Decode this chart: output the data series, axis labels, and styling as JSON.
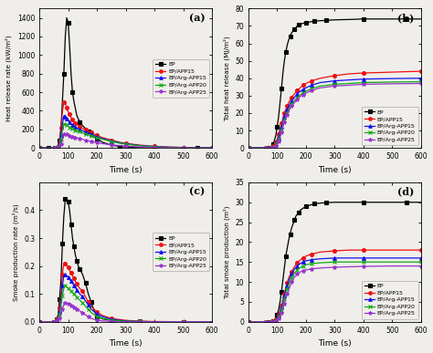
{
  "series_labels": [
    "EP",
    "EP/APP15",
    "EP/Arg-APP15",
    "EP/Arg-APP20",
    "EP/Arg-APP25"
  ],
  "series_colors": [
    "black",
    "#ee1111",
    "#1111ee",
    "#11aa11",
    "#9933cc"
  ],
  "series_markers": [
    "s",
    "o",
    "^",
    "x",
    "*"
  ],
  "series_markersizes": [
    3.5,
    3.0,
    3.0,
    3.5,
    3.5
  ],
  "subplot_labels": [
    "(a)",
    "(b)",
    "(c)",
    "(d)"
  ],
  "hrr": {
    "ylabel": "Heat release rate (kW/m²)",
    "xlabel": "Time (s)",
    "ylim": [
      0,
      1500
    ],
    "yticks": [
      0,
      200,
      400,
      600,
      800,
      1000,
      1200,
      1400
    ],
    "EP_t": [
      0,
      10,
      20,
      30,
      40,
      50,
      55,
      60,
      65,
      70,
      75,
      80,
      85,
      90,
      95,
      100,
      105,
      110,
      115,
      120,
      130,
      140,
      150,
      160,
      170,
      180,
      190,
      200,
      220,
      250,
      280,
      300,
      350,
      400,
      450,
      500,
      550,
      600
    ],
    "EP_v": [
      0,
      0,
      0,
      0,
      0,
      0,
      2,
      5,
      12,
      80,
      200,
      500,
      800,
      1200,
      1400,
      1350,
      1100,
      800,
      600,
      500,
      350,
      280,
      240,
      210,
      180,
      150,
      120,
      100,
      60,
      30,
      15,
      10,
      5,
      2,
      1,
      0,
      0,
      0
    ],
    "EP_APP15_t": [
      0,
      45,
      55,
      60,
      65,
      70,
      75,
      80,
      85,
      90,
      95,
      100,
      105,
      110,
      115,
      120,
      125,
      130,
      140,
      150,
      160,
      170,
      180,
      190,
      200,
      220,
      250,
      280,
      300,
      350,
      400,
      450,
      500,
      550,
      600
    ],
    "EP_APP15_v": [
      0,
      0,
      3,
      8,
      25,
      90,
      220,
      390,
      490,
      480,
      430,
      390,
      360,
      330,
      310,
      290,
      270,
      255,
      230,
      210,
      195,
      180,
      165,
      150,
      135,
      110,
      85,
      60,
      50,
      30,
      18,
      10,
      6,
      3,
      1
    ],
    "EP_Arg_APP15_t": [
      0,
      45,
      55,
      60,
      65,
      70,
      75,
      80,
      85,
      90,
      95,
      100,
      105,
      110,
      115,
      120,
      125,
      130,
      140,
      150,
      160,
      170,
      180,
      190,
      200,
      220,
      250,
      280,
      300,
      350,
      400,
      450,
      500,
      550,
      600
    ],
    "EP_Arg_APP15_v": [
      0,
      0,
      2,
      5,
      15,
      55,
      140,
      260,
      340,
      350,
      320,
      295,
      275,
      260,
      245,
      235,
      225,
      215,
      200,
      185,
      170,
      158,
      145,
      132,
      120,
      100,
      75,
      55,
      45,
      25,
      15,
      8,
      5,
      2,
      1
    ],
    "EP_Arg_APP20_t": [
      0,
      45,
      55,
      60,
      65,
      70,
      75,
      80,
      85,
      90,
      95,
      100,
      105,
      110,
      115,
      120,
      125,
      130,
      140,
      150,
      160,
      170,
      180,
      190,
      200,
      220,
      250,
      280,
      300,
      350,
      400,
      450,
      500,
      550,
      600
    ],
    "EP_Arg_APP20_v": [
      0,
      0,
      1,
      3,
      8,
      30,
      90,
      185,
      255,
      265,
      250,
      235,
      222,
      212,
      205,
      198,
      192,
      186,
      175,
      162,
      150,
      140,
      130,
      120,
      110,
      93,
      70,
      50,
      40,
      22,
      12,
      6,
      3,
      1,
      0
    ],
    "EP_Arg_APP25_t": [
      0,
      45,
      55,
      60,
      65,
      70,
      75,
      80,
      85,
      90,
      95,
      100,
      105,
      110,
      115,
      120,
      125,
      130,
      140,
      150,
      160,
      170,
      180,
      190,
      200,
      220,
      250,
      280,
      300,
      350,
      400,
      450,
      500,
      550,
      600
    ],
    "EP_Arg_APP25_v": [
      0,
      0,
      0,
      1,
      3,
      12,
      40,
      90,
      145,
      155,
      148,
      140,
      133,
      127,
      122,
      118,
      113,
      108,
      100,
      92,
      84,
      76,
      68,
      62,
      56,
      46,
      34,
      24,
      19,
      10,
      5,
      2,
      1,
      0,
      0
    ]
  },
  "thr": {
    "ylabel": "Total heat release (MJ/m²)",
    "xlabel": "Time (s)",
    "ylim": [
      0,
      80
    ],
    "yticks": [
      0,
      10,
      20,
      30,
      40,
      50,
      60,
      70,
      80
    ],
    "EP_t": [
      0,
      50,
      60,
      70,
      75,
      80,
      85,
      90,
      95,
      100,
      105,
      110,
      115,
      120,
      125,
      130,
      135,
      140,
      145,
      150,
      155,
      160,
      165,
      170,
      175,
      180,
      190,
      200,
      210,
      220,
      230,
      240,
      250,
      270,
      300,
      350,
      400,
      450,
      500,
      550,
      600
    ],
    "EP_v": [
      0,
      0,
      0,
      0,
      0,
      1,
      2,
      4,
      7,
      12,
      18,
      26,
      34,
      43,
      50,
      55,
      59,
      62,
      64,
      66,
      67,
      68,
      69,
      70,
      70.5,
      71,
      71.5,
      72,
      72.2,
      72.5,
      72.7,
      72.9,
      73,
      73.2,
      73.5,
      73.7,
      74,
      74,
      74,
      74,
      74
    ],
    "EP_APP15_t": [
      0,
      50,
      60,
      70,
      75,
      80,
      85,
      90,
      95,
      100,
      105,
      110,
      115,
      120,
      125,
      130,
      135,
      140,
      150,
      160,
      170,
      180,
      190,
      200,
      220,
      250,
      300,
      350,
      400,
      500,
      600
    ],
    "EP_APP15_v": [
      0,
      0,
      0,
      0,
      0,
      0,
      1,
      2,
      3,
      5,
      8,
      11,
      14,
      17,
      20,
      22,
      24,
      26,
      29,
      31,
      33,
      34.5,
      36,
      37,
      38.5,
      40,
      41.5,
      42.5,
      43,
      43.5,
      44
    ],
    "EP_Arg_APP15_t": [
      0,
      50,
      60,
      70,
      75,
      80,
      85,
      90,
      95,
      100,
      105,
      110,
      115,
      120,
      125,
      130,
      135,
      140,
      150,
      160,
      170,
      180,
      190,
      200,
      220,
      250,
      300,
      350,
      400,
      500,
      600
    ],
    "EP_Arg_APP15_v": [
      0,
      0,
      0,
      0,
      0,
      0,
      0,
      1,
      2,
      4,
      6,
      9,
      12,
      15,
      18,
      20,
      22,
      24,
      27,
      29,
      31,
      32.5,
      33.5,
      34.5,
      36,
      37.5,
      38.5,
      39,
      39.5,
      39.8,
      40
    ],
    "EP_Arg_APP20_t": [
      0,
      50,
      60,
      70,
      75,
      80,
      85,
      90,
      95,
      100,
      105,
      110,
      115,
      120,
      125,
      130,
      135,
      140,
      150,
      160,
      170,
      180,
      190,
      200,
      220,
      250,
      300,
      350,
      400,
      500,
      600
    ],
    "EP_Arg_APP20_v": [
      0,
      0,
      0,
      0,
      0,
      0,
      0,
      1,
      2,
      3,
      5,
      7,
      10,
      13,
      16,
      18,
      20,
      22,
      25,
      27,
      29,
      30.5,
      31.5,
      32.5,
      34,
      35.5,
      36.5,
      37,
      37.5,
      37.8,
      38
    ],
    "EP_Arg_APP25_t": [
      0,
      50,
      60,
      70,
      75,
      80,
      85,
      90,
      95,
      100,
      105,
      110,
      115,
      120,
      125,
      130,
      135,
      140,
      150,
      160,
      170,
      180,
      190,
      200,
      220,
      250,
      300,
      350,
      400,
      500,
      600
    ],
    "EP_Arg_APP25_v": [
      0,
      0,
      0,
      0,
      0,
      0,
      0,
      0,
      1,
      2,
      4,
      6,
      9,
      12,
      15,
      17,
      19,
      21,
      24,
      26,
      28,
      29.5,
      30.5,
      31.5,
      33,
      34.5,
      35.5,
      36,
      36.5,
      36.8,
      37
    ]
  },
  "spr": {
    "ylabel": "Smoke production rate (m²/s)",
    "xlabel": "Time (s)",
    "ylim": [
      0,
      0.5
    ],
    "yticks": [
      0.0,
      0.1,
      0.2,
      0.3,
      0.4
    ],
    "EP_t": [
      0,
      40,
      50,
      55,
      60,
      65,
      70,
      75,
      80,
      85,
      90,
      95,
      100,
      105,
      110,
      115,
      120,
      125,
      130,
      135,
      140,
      150,
      160,
      170,
      180,
      190,
      200,
      220,
      250,
      300,
      350,
      400,
      500,
      600
    ],
    "EP_v": [
      0,
      0,
      0,
      0.005,
      0.01,
      0.025,
      0.08,
      0.15,
      0.28,
      0.38,
      0.44,
      0.44,
      0.43,
      0.4,
      0.35,
      0.3,
      0.27,
      0.24,
      0.22,
      0.2,
      0.19,
      0.17,
      0.14,
      0.1,
      0.07,
      0.04,
      0.02,
      0.01,
      0.005,
      0.002,
      0.001,
      0,
      0,
      0
    ],
    "EP_APP15_t": [
      0,
      40,
      50,
      55,
      60,
      65,
      70,
      75,
      80,
      85,
      90,
      95,
      100,
      105,
      110,
      115,
      120,
      125,
      130,
      140,
      150,
      160,
      170,
      180,
      200,
      220,
      250,
      300,
      350,
      400,
      500,
      600
    ],
    "EP_APP15_v": [
      0,
      0,
      0,
      0.003,
      0.008,
      0.02,
      0.05,
      0.1,
      0.17,
      0.21,
      0.21,
      0.2,
      0.195,
      0.185,
      0.175,
      0.165,
      0.155,
      0.145,
      0.135,
      0.12,
      0.11,
      0.09,
      0.07,
      0.055,
      0.035,
      0.022,
      0.012,
      0.005,
      0.002,
      0.001,
      0,
      0
    ],
    "EP_Arg_APP15_t": [
      0,
      40,
      50,
      55,
      60,
      65,
      70,
      75,
      80,
      85,
      90,
      95,
      100,
      105,
      110,
      115,
      120,
      125,
      130,
      140,
      150,
      160,
      170,
      180,
      200,
      220,
      250,
      300,
      350,
      400,
      500,
      600
    ],
    "EP_Arg_APP15_v": [
      0,
      0,
      0,
      0.002,
      0.006,
      0.015,
      0.035,
      0.075,
      0.13,
      0.165,
      0.17,
      0.165,
      0.16,
      0.152,
      0.145,
      0.138,
      0.13,
      0.122,
      0.115,
      0.1,
      0.09,
      0.075,
      0.06,
      0.045,
      0.028,
      0.018,
      0.009,
      0.003,
      0.001,
      0,
      0,
      0
    ],
    "EP_Arg_APP20_t": [
      0,
      40,
      50,
      55,
      60,
      65,
      70,
      75,
      80,
      85,
      90,
      95,
      100,
      105,
      110,
      115,
      120,
      125,
      130,
      140,
      150,
      160,
      170,
      180,
      200,
      220,
      250,
      300,
      350,
      400,
      500,
      600
    ],
    "EP_Arg_APP20_v": [
      0,
      0,
      0,
      0.001,
      0.004,
      0.01,
      0.025,
      0.055,
      0.095,
      0.12,
      0.13,
      0.125,
      0.12,
      0.115,
      0.11,
      0.105,
      0.1,
      0.094,
      0.088,
      0.078,
      0.068,
      0.056,
      0.044,
      0.033,
      0.02,
      0.012,
      0.006,
      0.002,
      0.001,
      0,
      0,
      0
    ],
    "EP_Arg_APP25_t": [
      0,
      40,
      50,
      55,
      60,
      65,
      70,
      75,
      80,
      85,
      90,
      95,
      100,
      105,
      110,
      115,
      120,
      125,
      130,
      140,
      150,
      160,
      170,
      180,
      200,
      220,
      250,
      300,
      350,
      400,
      500,
      600
    ],
    "EP_Arg_APP25_v": [
      0,
      0,
      0,
      0,
      0.002,
      0.005,
      0.012,
      0.025,
      0.045,
      0.062,
      0.068,
      0.067,
      0.065,
      0.062,
      0.059,
      0.056,
      0.053,
      0.05,
      0.046,
      0.039,
      0.033,
      0.025,
      0.018,
      0.012,
      0.006,
      0.003,
      0.001,
      0,
      0,
      0,
      0,
      0
    ]
  },
  "tsp": {
    "ylabel": "Total smoke production (m²)",
    "xlabel": "Time (s)",
    "ylim": [
      0,
      35
    ],
    "yticks": [
      0,
      5,
      10,
      15,
      20,
      25,
      30,
      35
    ],
    "EP_t": [
      0,
      50,
      60,
      70,
      75,
      80,
      85,
      90,
      95,
      100,
      105,
      110,
      115,
      120,
      125,
      130,
      135,
      140,
      145,
      150,
      155,
      160,
      165,
      170,
      175,
      180,
      190,
      200,
      210,
      220,
      230,
      240,
      250,
      270,
      300,
      350,
      400,
      450,
      500,
      550,
      600
    ],
    "EP_v": [
      0,
      0,
      0,
      0,
      0,
      0.1,
      0.2,
      0.5,
      1.0,
      1.8,
      3.0,
      5.0,
      7.5,
      10.5,
      13.5,
      16.5,
      18.5,
      20.5,
      22,
      23.5,
      24.5,
      25.5,
      26.5,
      27,
      27.5,
      28,
      28.5,
      29,
      29.2,
      29.4,
      29.6,
      29.7,
      29.8,
      29.9,
      30,
      30,
      30,
      30,
      30,
      30,
      30
    ],
    "EP_APP15_t": [
      0,
      50,
      60,
      70,
      75,
      80,
      85,
      90,
      95,
      100,
      105,
      110,
      115,
      120,
      125,
      130,
      135,
      140,
      150,
      160,
      170,
      180,
      190,
      200,
      220,
      250,
      300,
      350,
      400,
      500,
      600
    ],
    "EP_APP15_v": [
      0,
      0,
      0,
      0,
      0,
      0,
      0.1,
      0.3,
      0.6,
      1.1,
      1.8,
      2.8,
      4.0,
      5.5,
      7.0,
      8.5,
      9.8,
      11,
      12.5,
      13.8,
      14.8,
      15.5,
      16,
      16.5,
      17,
      17.5,
      17.8,
      18,
      18,
      18,
      18
    ],
    "EP_Arg_APP15_t": [
      0,
      50,
      60,
      70,
      75,
      80,
      85,
      90,
      95,
      100,
      105,
      110,
      115,
      120,
      125,
      130,
      135,
      140,
      150,
      160,
      170,
      180,
      190,
      200,
      220,
      250,
      300,
      350,
      400,
      500,
      600
    ],
    "EP_Arg_APP15_v": [
      0,
      0,
      0,
      0,
      0,
      0,
      0.05,
      0.2,
      0.5,
      0.9,
      1.5,
      2.4,
      3.5,
      5.0,
      6.5,
      8,
      9.2,
      10.3,
      12,
      13.2,
      14,
      14.6,
      15,
      15.3,
      15.6,
      15.8,
      16,
      16,
      16,
      16,
      16
    ],
    "EP_Arg_APP20_t": [
      0,
      50,
      60,
      70,
      75,
      80,
      85,
      90,
      95,
      100,
      105,
      110,
      115,
      120,
      125,
      130,
      135,
      140,
      150,
      160,
      170,
      180,
      190,
      200,
      220,
      250,
      300,
      350,
      400,
      500,
      600
    ],
    "EP_Arg_APP20_v": [
      0,
      0,
      0,
      0,
      0,
      0,
      0.05,
      0.15,
      0.35,
      0.7,
      1.2,
      2.0,
      3.0,
      4.3,
      5.7,
      7.0,
      8.2,
      9.3,
      11,
      12.2,
      13,
      13.6,
      14,
      14.3,
      14.6,
      14.8,
      15,
      15,
      15,
      15,
      15
    ],
    "EP_Arg_APP25_t": [
      0,
      50,
      60,
      70,
      75,
      80,
      85,
      90,
      95,
      100,
      105,
      110,
      115,
      120,
      125,
      130,
      135,
      140,
      150,
      160,
      170,
      180,
      190,
      200,
      220,
      250,
      300,
      350,
      400,
      500,
      600
    ],
    "EP_Arg_APP25_v": [
      0,
      0,
      0,
      0,
      0,
      0,
      0.02,
      0.08,
      0.2,
      0.5,
      0.9,
      1.5,
      2.3,
      3.3,
      4.5,
      5.8,
      7.0,
      8.0,
      10,
      11.2,
      12,
      12.5,
      12.8,
      13,
      13.3,
      13.5,
      13.7,
      13.8,
      13.9,
      14,
      14
    ]
  }
}
